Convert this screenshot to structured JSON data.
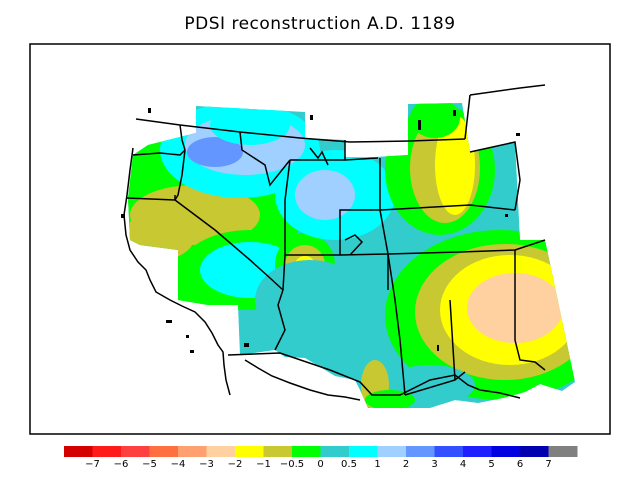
{
  "title": "PDSI reconstruction A.D. 1189",
  "legend": {
    "colors": [
      "#d40000",
      "#ff1a1a",
      "#ff4040",
      "#ff7040",
      "#ffa070",
      "#ffd0a0",
      "#ffff00",
      "#c8c832",
      "#00ff00",
      "#33cccc",
      "#00ffff",
      "#a0d0ff",
      "#6496ff",
      "#3250ff",
      "#1e1eff",
      "#0000e0",
      "#0000b0",
      "#808080"
    ],
    "labels": [
      "−7",
      "−6",
      "−5",
      "−4",
      "−3",
      "−2",
      "−1",
      "−0.5",
      "0",
      "0.5",
      "1",
      "2",
      "3",
      "4",
      "5",
      "6",
      "7"
    ]
  }
}
